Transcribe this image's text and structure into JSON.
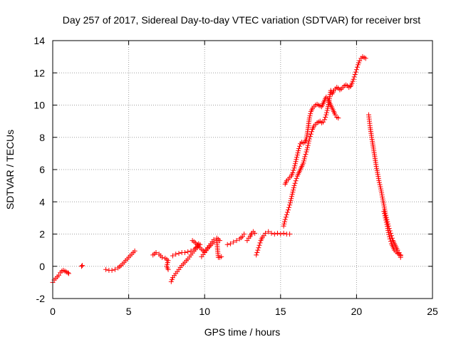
{
  "chart_data": {
    "type": "scatter",
    "title": "Day 257 of 2017, Sidereal Day-to-day VTEC variation (SDTVAR) for receiver brst",
    "xlabel": "GPS time / hours",
    "ylabel": "SDTVAR / TECUs",
    "xlim": [
      0,
      25
    ],
    "ylim": [
      -2,
      14
    ],
    "xticks": [
      0,
      5,
      10,
      15,
      20,
      25
    ],
    "yticks": [
      -2,
      0,
      2,
      4,
      6,
      8,
      10,
      12,
      14
    ],
    "xtick_labels": [
      "0",
      "5",
      "10",
      "15",
      "20",
      "25"
    ],
    "ytick_labels": [
      "-2",
      "0",
      "2",
      "4",
      "6",
      "8",
      "10",
      "12",
      "14"
    ],
    "grid": true,
    "marker": "+",
    "color": "#ff0000",
    "series": [
      {
        "name": "segment-1",
        "points": [
          [
            0.0,
            -1.0
          ],
          [
            0.1,
            -0.85
          ],
          [
            0.2,
            -0.75
          ],
          [
            0.3,
            -0.65
          ],
          [
            0.4,
            -0.55
          ],
          [
            0.5,
            -0.4
          ],
          [
            0.6,
            -0.3
          ],
          [
            0.7,
            -0.25
          ],
          [
            0.8,
            -0.3
          ],
          [
            0.9,
            -0.35
          ],
          [
            1.0,
            -0.4
          ],
          [
            1.05,
            -0.45
          ]
        ]
      },
      {
        "name": "segment-2",
        "points": [
          [
            1.9,
            0.0
          ],
          [
            1.95,
            0.05
          ]
        ]
      },
      {
        "name": "segment-3",
        "points": [
          [
            3.5,
            -0.2
          ],
          [
            3.7,
            -0.25
          ],
          [
            3.9,
            -0.25
          ],
          [
            4.1,
            -0.2
          ],
          [
            4.3,
            -0.1
          ],
          [
            4.5,
            0.05
          ],
          [
            4.7,
            0.25
          ],
          [
            4.9,
            0.45
          ],
          [
            5.1,
            0.65
          ],
          [
            5.3,
            0.85
          ],
          [
            5.4,
            0.95
          ]
        ]
      },
      {
        "name": "segment-4",
        "points": [
          [
            6.6,
            0.7
          ],
          [
            6.8,
            0.85
          ],
          [
            7.0,
            0.75
          ],
          [
            7.2,
            0.55
          ],
          [
            7.4,
            0.5
          ],
          [
            7.6,
            0.35
          ],
          [
            7.5,
            0.0
          ],
          [
            7.6,
            -0.2
          ]
        ]
      },
      {
        "name": "segment-5",
        "points": [
          [
            7.9,
            0.65
          ],
          [
            8.1,
            0.75
          ],
          [
            8.3,
            0.8
          ],
          [
            8.5,
            0.85
          ],
          [
            8.7,
            0.85
          ],
          [
            8.9,
            0.9
          ],
          [
            9.1,
            0.95
          ],
          [
            9.3,
            1.05
          ],
          [
            9.5,
            1.2
          ],
          [
            9.6,
            1.4
          ]
        ]
      },
      {
        "name": "segment-6",
        "points": [
          [
            7.8,
            -0.95
          ],
          [
            7.9,
            -0.7
          ],
          [
            8.1,
            -0.45
          ],
          [
            8.3,
            -0.2
          ],
          [
            8.5,
            0.05
          ],
          [
            8.7,
            0.25
          ],
          [
            8.9,
            0.45
          ],
          [
            9.1,
            0.7
          ],
          [
            9.3,
            0.95
          ],
          [
            9.5,
            1.15
          ],
          [
            9.7,
            1.35
          ]
        ]
      },
      {
        "name": "segment-7",
        "points": [
          [
            9.2,
            1.6
          ],
          [
            9.4,
            1.45
          ],
          [
            9.6,
            1.25
          ],
          [
            9.8,
            1.05
          ],
          [
            10.0,
            0.9
          ],
          [
            10.2,
            1.15
          ],
          [
            10.4,
            1.4
          ],
          [
            10.6,
            1.65
          ],
          [
            10.8,
            1.75
          ],
          [
            11.0,
            1.6
          ]
        ]
      },
      {
        "name": "segment-8",
        "points": [
          [
            9.8,
            0.6
          ],
          [
            10.0,
            0.85
          ],
          [
            10.2,
            1.1
          ],
          [
            10.4,
            1.3
          ],
          [
            10.6,
            1.5
          ],
          [
            10.8,
            1.6
          ],
          [
            10.9,
            0.55
          ],
          [
            11.0,
            0.55
          ],
          [
            11.1,
            0.6
          ]
        ]
      },
      {
        "name": "segment-9",
        "points": [
          [
            11.5,
            1.35
          ],
          [
            11.7,
            1.4
          ],
          [
            11.9,
            1.5
          ],
          [
            12.1,
            1.6
          ],
          [
            12.3,
            1.7
          ],
          [
            12.5,
            1.85
          ],
          [
            12.6,
            2.0
          ]
        ]
      },
      {
        "name": "segment-10",
        "points": [
          [
            12.8,
            1.6
          ],
          [
            12.9,
            1.75
          ],
          [
            13.0,
            1.85
          ],
          [
            13.1,
            2.05
          ],
          [
            13.2,
            2.15
          ],
          [
            13.3,
            2.05
          ]
        ]
      },
      {
        "name": "segment-11",
        "points": [
          [
            13.4,
            0.7
          ],
          [
            13.5,
            1.0
          ],
          [
            13.6,
            1.3
          ],
          [
            13.7,
            1.6
          ],
          [
            13.8,
            1.8
          ],
          [
            13.9,
            1.9
          ],
          [
            14.0,
            2.05
          ],
          [
            14.2,
            2.15
          ],
          [
            14.4,
            2.05
          ],
          [
            14.6,
            2.0
          ],
          [
            14.8,
            2.05
          ],
          [
            15.0,
            2.0
          ],
          [
            15.2,
            2.05
          ],
          [
            15.4,
            2.0
          ],
          [
            15.6,
            2.0
          ]
        ]
      },
      {
        "name": "segment-12",
        "points": [
          [
            15.2,
            2.5
          ],
          [
            15.3,
            2.9
          ],
          [
            15.4,
            3.2
          ],
          [
            15.5,
            3.5
          ],
          [
            15.6,
            3.8
          ],
          [
            15.7,
            4.2
          ],
          [
            15.8,
            4.6
          ],
          [
            15.9,
            5.0
          ],
          [
            16.0,
            5.3
          ],
          [
            16.1,
            5.6
          ],
          [
            16.2,
            5.8
          ],
          [
            16.3,
            6.0
          ],
          [
            16.4,
            6.2
          ],
          [
            16.5,
            6.4
          ],
          [
            16.6,
            6.8
          ],
          [
            16.7,
            7.1
          ],
          [
            16.8,
            7.5
          ],
          [
            16.9,
            7.9
          ],
          [
            17.0,
            8.2
          ],
          [
            17.1,
            8.5
          ],
          [
            17.2,
            8.7
          ],
          [
            17.3,
            8.8
          ],
          [
            17.4,
            8.9
          ],
          [
            17.5,
            8.95
          ],
          [
            17.6,
            9.0
          ],
          [
            17.7,
            8.9
          ],
          [
            17.8,
            8.95
          ],
          [
            17.9,
            9.1
          ],
          [
            18.0,
            9.4
          ],
          [
            18.1,
            9.8
          ],
          [
            18.2,
            10.3
          ],
          [
            18.3,
            10.9
          ],
          [
            18.4,
            10.7
          ],
          [
            18.5,
            10.9
          ],
          [
            18.6,
            11.0
          ],
          [
            18.7,
            11.1
          ],
          [
            18.8,
            11.05
          ],
          [
            18.9,
            10.95
          ],
          [
            19.0,
            11.0
          ],
          [
            19.1,
            11.1
          ],
          [
            19.2,
            11.2
          ],
          [
            19.3,
            11.25
          ],
          [
            19.4,
            11.2
          ],
          [
            19.5,
            11.1
          ],
          [
            19.6,
            11.15
          ],
          [
            19.7,
            11.35
          ],
          [
            19.8,
            11.6
          ],
          [
            19.9,
            11.9
          ],
          [
            20.0,
            12.2
          ],
          [
            20.1,
            12.5
          ],
          [
            20.2,
            12.75
          ],
          [
            20.3,
            12.9
          ],
          [
            20.4,
            13.0
          ],
          [
            20.5,
            12.95
          ],
          [
            20.6,
            12.9
          ]
        ]
      },
      {
        "name": "segment-13",
        "points": [
          [
            15.3,
            5.1
          ],
          [
            15.4,
            5.3
          ],
          [
            15.5,
            5.4
          ],
          [
            15.6,
            5.5
          ],
          [
            15.7,
            5.6
          ],
          [
            15.8,
            5.8
          ],
          [
            15.9,
            6.1
          ],
          [
            16.0,
            6.5
          ],
          [
            16.1,
            6.9
          ],
          [
            16.2,
            7.3
          ],
          [
            16.3,
            7.6
          ],
          [
            16.4,
            7.7
          ],
          [
            16.5,
            7.65
          ],
          [
            16.6,
            7.7
          ],
          [
            16.7,
            7.9
          ],
          [
            16.8,
            8.5
          ],
          [
            16.9,
            9.2
          ],
          [
            17.0,
            9.6
          ],
          [
            17.1,
            9.8
          ],
          [
            17.2,
            9.9
          ],
          [
            17.3,
            10.0
          ],
          [
            17.4,
            10.05
          ],
          [
            17.5,
            10.0
          ],
          [
            17.6,
            9.95
          ],
          [
            17.7,
            9.9
          ],
          [
            17.8,
            10.1
          ],
          [
            17.9,
            10.3
          ],
          [
            18.0,
            10.5
          ],
          [
            18.1,
            10.4
          ],
          [
            18.2,
            10.2
          ],
          [
            18.3,
            10.0
          ],
          [
            18.4,
            9.8
          ],
          [
            18.5,
            9.6
          ],
          [
            18.6,
            9.4
          ],
          [
            18.7,
            9.25
          ],
          [
            18.8,
            9.2
          ]
        ]
      },
      {
        "name": "segment-14",
        "points": [
          [
            20.8,
            9.4
          ],
          [
            20.85,
            9.0
          ],
          [
            20.9,
            8.6
          ],
          [
            21.0,
            8.0
          ],
          [
            21.1,
            7.4
          ],
          [
            21.2,
            6.8
          ],
          [
            21.3,
            6.2
          ],
          [
            21.4,
            5.7
          ],
          [
            21.5,
            5.2
          ],
          [
            21.6,
            4.8
          ],
          [
            21.7,
            4.3
          ],
          [
            21.8,
            3.8
          ],
          [
            21.9,
            3.3
          ],
          [
            22.0,
            2.9
          ],
          [
            22.1,
            2.5
          ],
          [
            22.2,
            2.2
          ],
          [
            22.3,
            1.9
          ],
          [
            22.4,
            1.6
          ],
          [
            22.5,
            1.4
          ],
          [
            22.6,
            1.2
          ],
          [
            22.7,
            1.0
          ],
          [
            22.8,
            0.85
          ],
          [
            22.9,
            0.7
          ],
          [
            22.9,
            0.55
          ]
        ]
      },
      {
        "name": "segment-15",
        "points": [
          [
            21.8,
            3.4
          ],
          [
            21.9,
            3.0
          ],
          [
            22.0,
            2.6
          ],
          [
            22.1,
            2.1
          ],
          [
            22.2,
            1.7
          ],
          [
            22.3,
            1.4
          ],
          [
            22.4,
            1.2
          ],
          [
            22.5,
            1.0
          ],
          [
            22.6,
            0.9
          ],
          [
            22.7,
            0.8
          ],
          [
            22.8,
            0.75
          ],
          [
            22.9,
            0.65
          ]
        ]
      }
    ]
  }
}
